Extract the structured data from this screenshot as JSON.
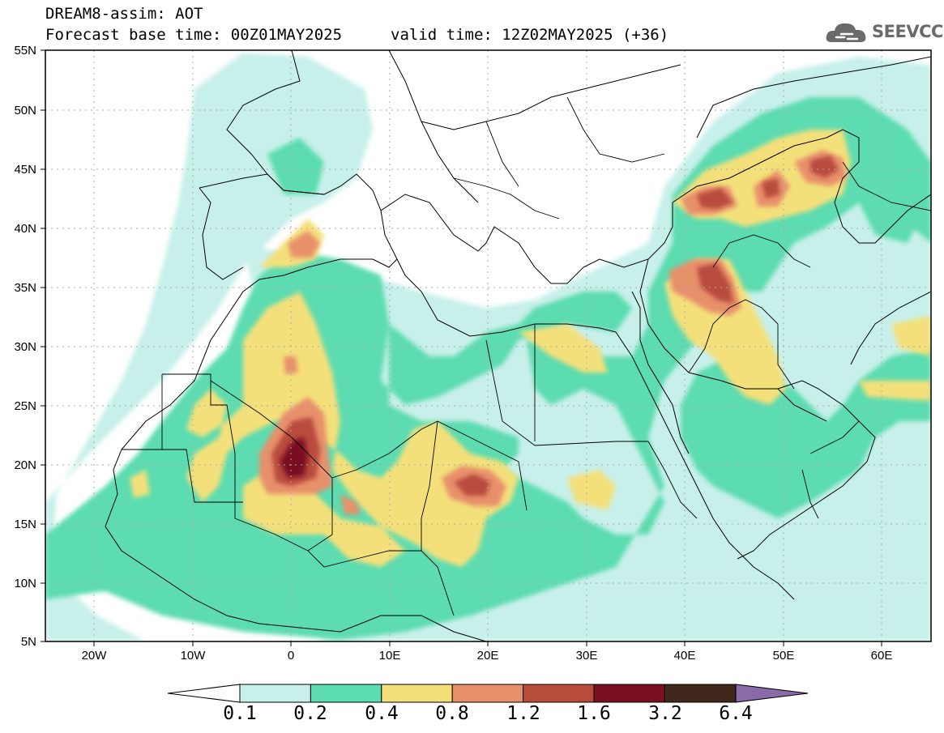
{
  "header": {
    "title": "DREAM8-assim: AOT",
    "base_time": "Forecast base time: 00Z01MAY2025",
    "valid_time": "valid time: 12Z02MAY2025 (+36)"
  },
  "logo": {
    "text": "SEEVCCC",
    "icon": "cloud-icon"
  },
  "map": {
    "lat_labels": [
      "55N",
      "50N",
      "45N",
      "40N",
      "35N",
      "30N",
      "25N",
      "20N",
      "15N",
      "10N",
      "5N"
    ],
    "lon_labels": [
      "20W",
      "10W",
      "0",
      "10E",
      "20E",
      "30E",
      "40E",
      "50E",
      "60E"
    ],
    "lat_range": [
      5,
      55
    ],
    "lon_range": [
      -25,
      65
    ],
    "grid": "dotted"
  },
  "colorbar": {
    "labels": [
      "0.1",
      "0.2",
      "0.4",
      "0.8",
      "1.2",
      "1.6",
      "3.2",
      "6.4"
    ],
    "colors": [
      "#c8f0ea",
      "#5cdcb0",
      "#f4e07a",
      "#e8906a",
      "#b84c3c",
      "#7a1020",
      "#40281c",
      "#8a6aa8"
    ]
  }
}
